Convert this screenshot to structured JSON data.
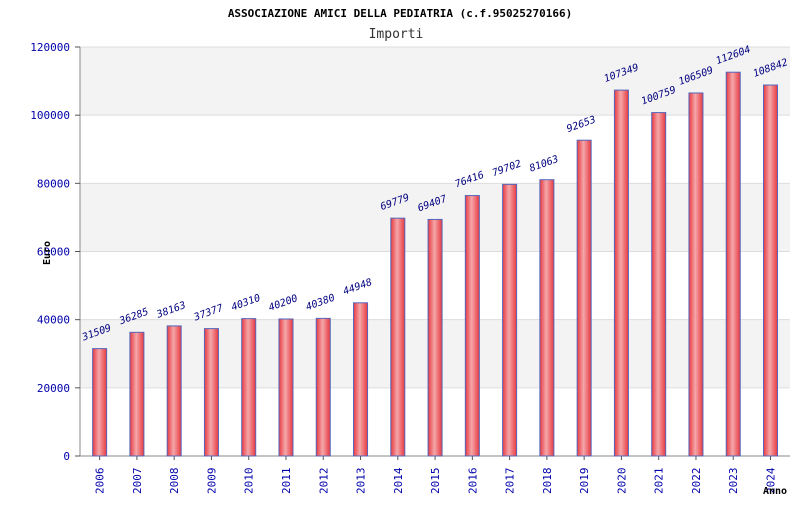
{
  "chart_data": {
    "type": "bar",
    "title": "ASSOCIAZIONE AMICI DELLA PEDIATRIA (c.f.95025270166)",
    "subtitle": "Importi",
    "xlabel": "Anno",
    "ylabel": "Euro",
    "ylim": [
      0,
      120000
    ],
    "yticks": [
      "0",
      "20000",
      "40000",
      "60000",
      "80000",
      "100000",
      "120000"
    ],
    "grid": true,
    "categories": [
      "2006",
      "2007",
      "2008",
      "2009",
      "2010",
      "2011",
      "2012",
      "2013",
      "2014",
      "2015",
      "2016",
      "2017",
      "2018",
      "2019",
      "2020",
      "2021",
      "2022",
      "2023",
      "2024"
    ],
    "values": [
      31509,
      36285,
      38163,
      37377,
      40310,
      40200,
      40380,
      44948,
      69779,
      69407,
      76416,
      79702,
      81063,
      92653,
      107349,
      100759,
      106509,
      112604,
      108842
    ],
    "data_labels": [
      "31509",
      "36285",
      "38163",
      "37377",
      "40310",
      "40200",
      "40380",
      "44948",
      "69779",
      "69407",
      "76416",
      "79702",
      "81063",
      "92653",
      "107349",
      "100759",
      "106509",
      "112604",
      "108842"
    ],
    "colors": {
      "bar_fill": "#e8393f",
      "bar_highlight": "#f4a7aa",
      "bar_edge": "#5566bb",
      "label_text": "#000080",
      "tick_text": "#0000aa",
      "title_text": "#000000",
      "band": "#f3f3f3",
      "grid": "#dddddd"
    }
  }
}
